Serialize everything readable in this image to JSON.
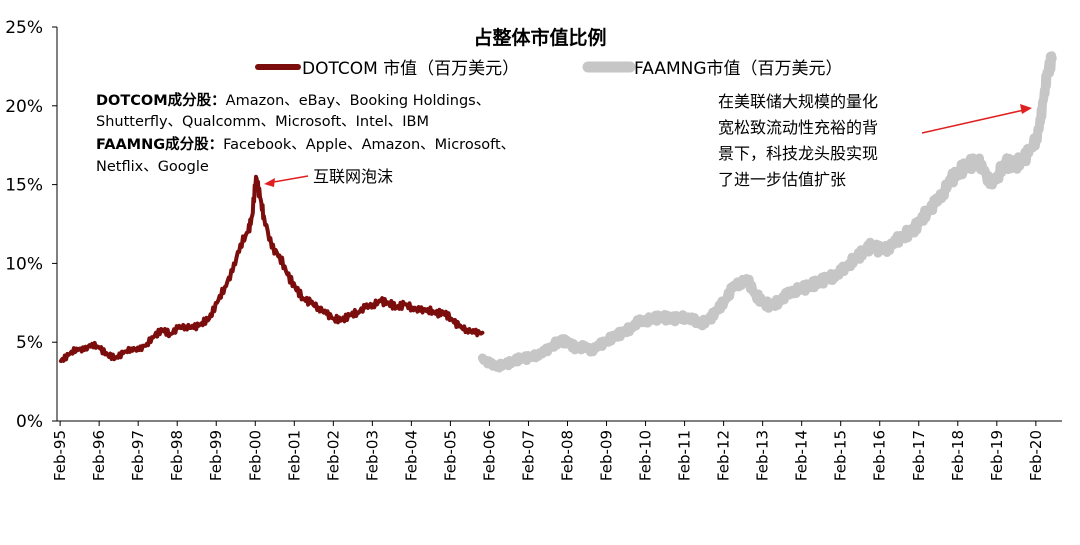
{
  "chart_data": {
    "type": "line",
    "title": "占整体市值比例",
    "ylim": [
      0,
      25
    ],
    "y_ticks": [
      "0%",
      "5%",
      "10%",
      "15%",
      "20%",
      "25%"
    ],
    "x_ticks": [
      "Feb-95",
      "Feb-96",
      "Feb-97",
      "Feb-98",
      "Feb-99",
      "Feb-00",
      "Feb-01",
      "Feb-02",
      "Feb-03",
      "Feb-04",
      "Feb-05",
      "Feb-06",
      "Feb-07",
      "Feb-08",
      "Feb-09",
      "Feb-10",
      "Feb-11",
      "Feb-12",
      "Feb-13",
      "Feb-14",
      "Feb-15",
      "Feb-16",
      "Feb-17",
      "Feb-18",
      "Feb-19",
      "Feb-20"
    ],
    "grid": false,
    "legend_position": "top",
    "series": [
      {
        "name": "DOTCOM 市值（百万美元）",
        "color": "#7b0d0d",
        "points": [
          [
            1995.1,
            3.8
          ],
          [
            1995.3,
            4.2
          ],
          [
            1995.5,
            4.6
          ],
          [
            1995.7,
            4.5
          ],
          [
            1995.9,
            4.9
          ],
          [
            1996.1,
            4.6
          ],
          [
            1996.3,
            4.2
          ],
          [
            1996.5,
            4.0
          ],
          [
            1996.7,
            4.3
          ],
          [
            1996.9,
            4.6
          ],
          [
            1997.1,
            4.5
          ],
          [
            1997.3,
            4.9
          ],
          [
            1997.5,
            5.4
          ],
          [
            1997.7,
            5.8
          ],
          [
            1997.9,
            5.5
          ],
          [
            1998.1,
            5.9
          ],
          [
            1998.3,
            6.0
          ],
          [
            1998.5,
            5.9
          ],
          [
            1998.7,
            6.2
          ],
          [
            1998.9,
            6.5
          ],
          [
            1999.1,
            7.5
          ],
          [
            1999.3,
            8.5
          ],
          [
            1999.5,
            9.5
          ],
          [
            1999.7,
            11.2
          ],
          [
            1999.9,
            12.0
          ],
          [
            2000.0,
            13.0
          ],
          [
            2000.1,
            15.5
          ],
          [
            2000.2,
            14.2
          ],
          [
            2000.3,
            13.0
          ],
          [
            2000.5,
            11.0
          ],
          [
            2000.7,
            10.5
          ],
          [
            2000.9,
            9.3
          ],
          [
            2001.1,
            8.5
          ],
          [
            2001.3,
            7.8
          ],
          [
            2001.5,
            7.5
          ],
          [
            2001.7,
            7.2
          ],
          [
            2001.9,
            6.8
          ],
          [
            2002.1,
            6.5
          ],
          [
            2002.3,
            6.4
          ],
          [
            2002.5,
            6.7
          ],
          [
            2002.7,
            6.9
          ],
          [
            2002.9,
            7.2
          ],
          [
            2003.1,
            7.4
          ],
          [
            2003.3,
            7.6
          ],
          [
            2003.5,
            7.5
          ],
          [
            2003.7,
            7.2
          ],
          [
            2003.9,
            7.4
          ],
          [
            2004.1,
            7.2
          ],
          [
            2004.3,
            7.0
          ],
          [
            2004.5,
            7.1
          ],
          [
            2004.7,
            6.8
          ],
          [
            2004.9,
            6.9
          ],
          [
            2005.1,
            6.5
          ],
          [
            2005.3,
            6.0
          ],
          [
            2005.5,
            5.8
          ],
          [
            2005.7,
            5.6
          ],
          [
            2005.9,
            5.6
          ]
        ]
      },
      {
        "name": "FAAMNG市值（百万美元）",
        "color": "#c6c6c6",
        "points": [
          [
            2005.9,
            4.0
          ],
          [
            2006.1,
            3.6
          ],
          [
            2006.3,
            3.5
          ],
          [
            2006.5,
            3.6
          ],
          [
            2006.7,
            3.8
          ],
          [
            2006.9,
            4.0
          ],
          [
            2007.1,
            4.0
          ],
          [
            2007.3,
            4.2
          ],
          [
            2007.5,
            4.4
          ],
          [
            2007.7,
            4.8
          ],
          [
            2007.9,
            5.1
          ],
          [
            2008.1,
            5.0
          ],
          [
            2008.3,
            4.6
          ],
          [
            2008.5,
            4.7
          ],
          [
            2008.7,
            4.5
          ],
          [
            2008.9,
            4.8
          ],
          [
            2009.1,
            5.1
          ],
          [
            2009.3,
            5.4
          ],
          [
            2009.5,
            5.6
          ],
          [
            2009.7,
            5.9
          ],
          [
            2009.9,
            6.3
          ],
          [
            2010.1,
            6.4
          ],
          [
            2010.3,
            6.5
          ],
          [
            2010.5,
            6.6
          ],
          [
            2010.7,
            6.5
          ],
          [
            2010.9,
            6.5
          ],
          [
            2011.1,
            6.6
          ],
          [
            2011.3,
            6.4
          ],
          [
            2011.5,
            6.2
          ],
          [
            2011.7,
            6.4
          ],
          [
            2011.9,
            7.0
          ],
          [
            2012.1,
            7.6
          ],
          [
            2012.3,
            8.4
          ],
          [
            2012.5,
            8.8
          ],
          [
            2012.7,
            8.9
          ],
          [
            2012.9,
            8.0
          ],
          [
            2013.1,
            7.5
          ],
          [
            2013.3,
            7.3
          ],
          [
            2013.5,
            7.6
          ],
          [
            2013.7,
            8.0
          ],
          [
            2013.9,
            8.3
          ],
          [
            2014.1,
            8.4
          ],
          [
            2014.3,
            8.6
          ],
          [
            2014.5,
            8.8
          ],
          [
            2014.7,
            9.0
          ],
          [
            2014.9,
            9.2
          ],
          [
            2015.1,
            9.5
          ],
          [
            2015.3,
            10.0
          ],
          [
            2015.5,
            10.4
          ],
          [
            2015.7,
            10.8
          ],
          [
            2015.9,
            11.2
          ],
          [
            2016.1,
            10.8
          ],
          [
            2016.3,
            11.0
          ],
          [
            2016.5,
            11.4
          ],
          [
            2016.7,
            11.8
          ],
          [
            2016.9,
            12.0
          ],
          [
            2017.1,
            12.6
          ],
          [
            2017.3,
            13.3
          ],
          [
            2017.5,
            13.8
          ],
          [
            2017.7,
            14.5
          ],
          [
            2017.9,
            15.3
          ],
          [
            2018.1,
            15.8
          ],
          [
            2018.3,
            16.2
          ],
          [
            2018.5,
            16.4
          ],
          [
            2018.7,
            16.3
          ],
          [
            2018.9,
            15.0
          ],
          [
            2019.1,
            15.6
          ],
          [
            2019.3,
            16.4
          ],
          [
            2019.5,
            16.2
          ],
          [
            2019.7,
            16.5
          ],
          [
            2019.9,
            17.0
          ],
          [
            2020.1,
            18.0
          ],
          [
            2020.2,
            19.0
          ],
          [
            2020.3,
            21.0
          ],
          [
            2020.4,
            22.3
          ],
          [
            2020.5,
            23.0
          ]
        ]
      }
    ],
    "annotations": {
      "constituents": [
        {
          "label": "DOTCOM成分股：",
          "text": "Amazon、eBay、Booking Holdings、"
        },
        {
          "label": "",
          "text": "Shutterfly、Qualcomm、Microsoft、Intel、IBM"
        },
        {
          "label": "FAAMNG成分股：",
          "text": "Facebook、Apple、Amazon、Microsoft、"
        },
        {
          "label": "",
          "text": "Netflix、Google"
        }
      ],
      "bubble": {
        "text": "互联网泡沫"
      },
      "fed_note": [
        "在美联储大规模的量化",
        "宽松致流动性充裕的背",
        "景下，科技龙头股实现",
        "了进一步估值扩张"
      ]
    }
  }
}
